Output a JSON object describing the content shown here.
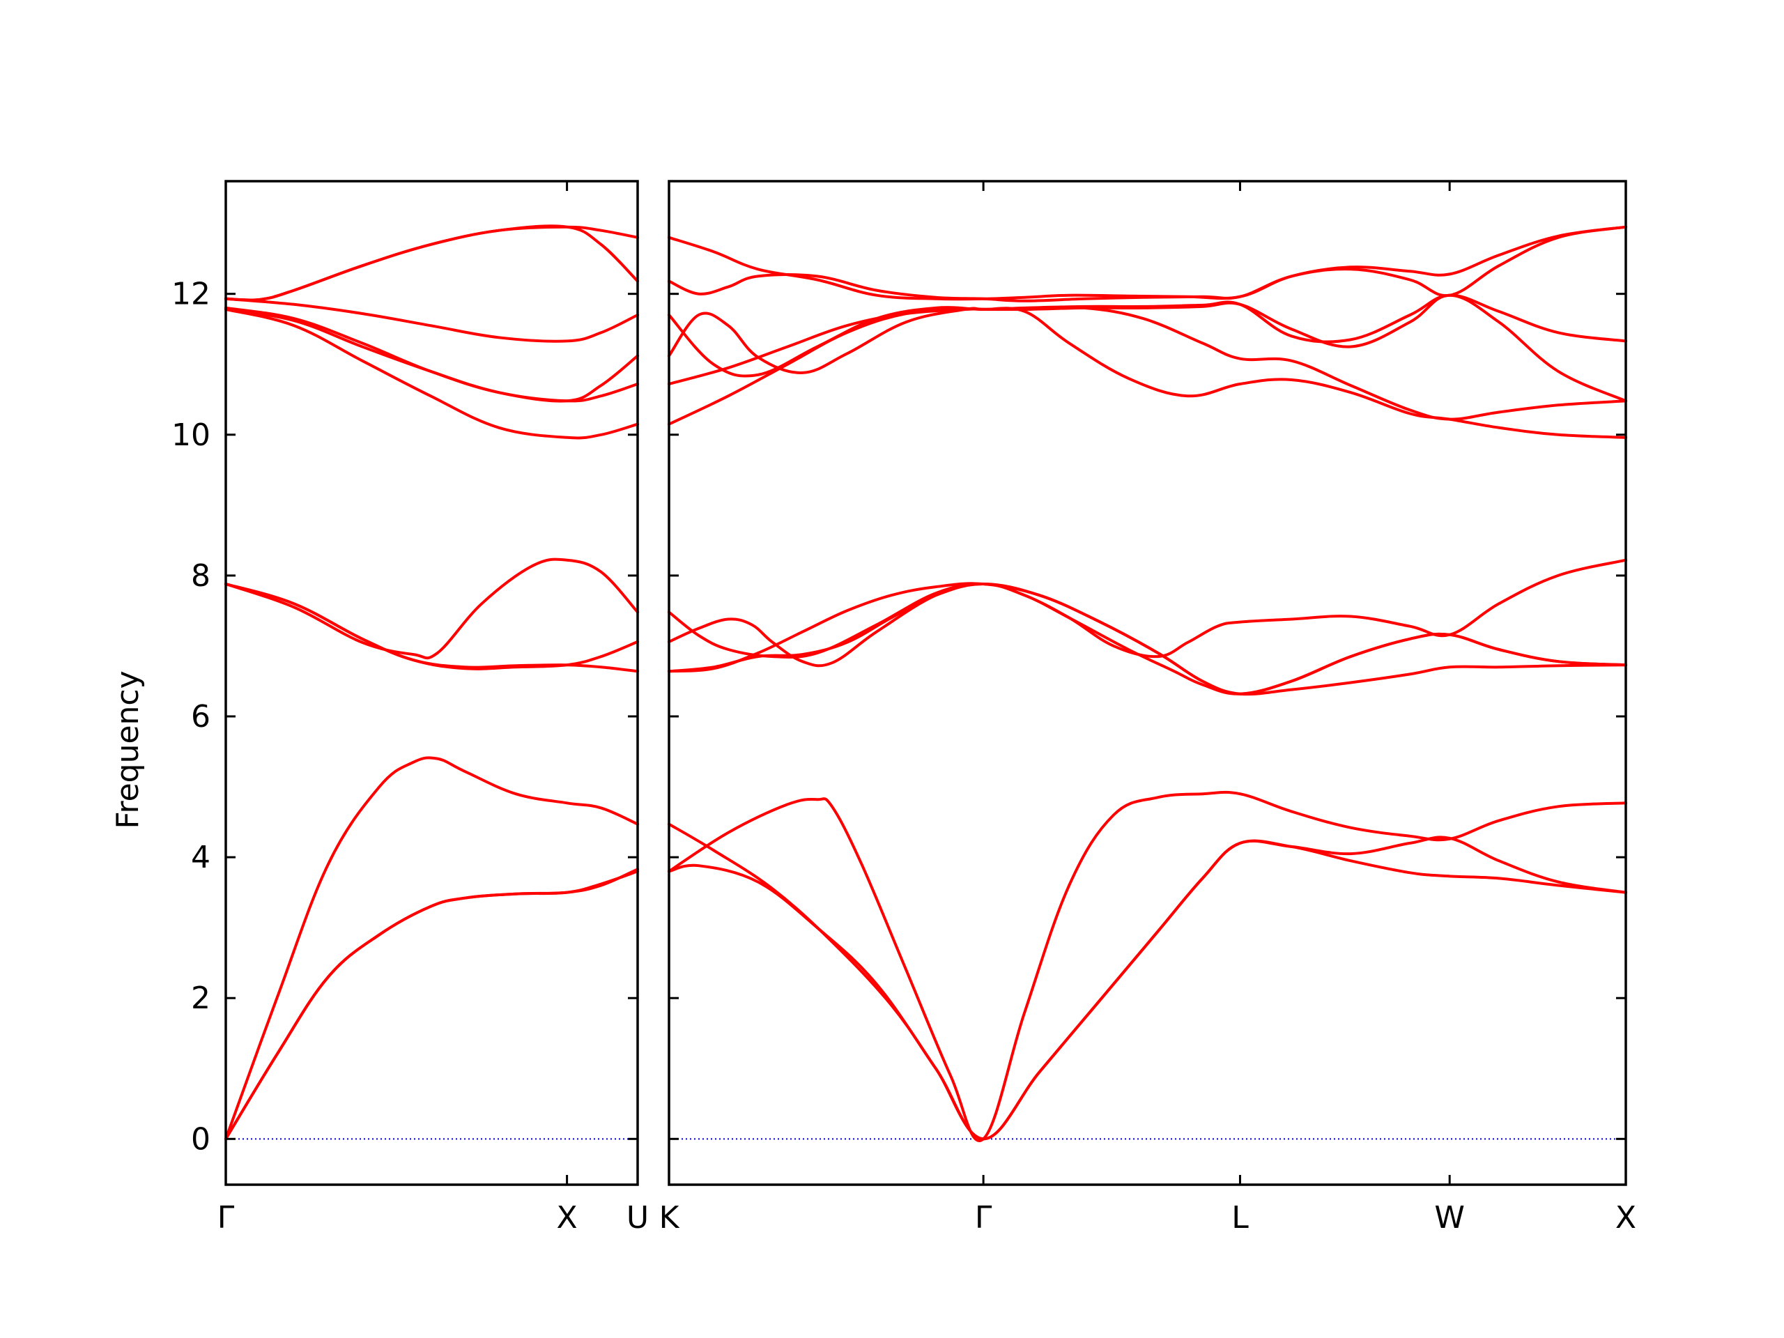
{
  "chart_data": {
    "type": "line",
    "ylabel": "Frequency",
    "ylim": [
      -0.65,
      13.6
    ],
    "yticks": [
      0,
      2,
      4,
      6,
      8,
      10,
      12
    ],
    "colors": {
      "bands": "#ff0000",
      "zero_line": "#0000cc",
      "frame": "#000000"
    },
    "grid": false,
    "panels": [
      {
        "x_range": [
          0,
          1.2071
        ],
        "ticks": [
          {
            "x": 0,
            "label": "Γ"
          },
          {
            "x": 1.0,
            "label": "X"
          },
          {
            "x": 1.2071,
            "label": "U"
          }
        ],
        "bands": [
          {
            "x": [
              0,
              0.15,
              0.3,
              0.45,
              0.6,
              0.7,
              0.85,
              1.0,
              1.1,
              1.2071
            ],
            "y": [
              0,
              1.2,
              2.3,
              2.9,
              3.3,
              3.42,
              3.48,
              3.5,
              3.62,
              3.8
            ]
          },
          {
            "x": [
              0,
              0.15,
              0.3,
              0.45,
              0.6,
              0.7,
              0.85,
              1.0,
              1.1,
              1.2071
            ],
            "y": [
              0,
              1.2,
              2.3,
              2.9,
              3.3,
              3.42,
              3.48,
              3.5,
              3.6,
              3.83
            ]
          },
          {
            "x": [
              0,
              0.15,
              0.3,
              0.45,
              0.55,
              0.62,
              0.7,
              0.85,
              1.0,
              1.1,
              1.2071
            ],
            "y": [
              0,
              2.0,
              3.9,
              5.0,
              5.35,
              5.4,
              5.22,
              4.9,
              4.77,
              4.7,
              4.47
            ]
          },
          {
            "x": [
              0,
              0.2,
              0.4,
              0.55,
              0.7,
              0.85,
              1.0,
              1.1,
              1.2071
            ],
            "y": [
              7.88,
              7.6,
              7.1,
              6.8,
              6.7,
              6.72,
              6.73,
              6.7,
              6.64
            ]
          },
          {
            "x": [
              0,
              0.2,
              0.4,
              0.55,
              0.7,
              0.85,
              1.0,
              1.1,
              1.2071
            ],
            "y": [
              7.88,
              7.6,
              7.1,
              6.8,
              6.68,
              6.7,
              6.73,
              6.85,
              7.06
            ]
          },
          {
            "x": [
              0,
              0.2,
              0.4,
              0.55,
              0.62,
              0.75,
              0.9,
              1.0,
              1.1,
              1.2071
            ],
            "y": [
              7.88,
              7.55,
              7.05,
              6.88,
              6.9,
              7.6,
              8.14,
              8.22,
              8.05,
              7.48
            ]
          },
          {
            "x": [
              0,
              0.2,
              0.4,
              0.6,
              0.8,
              1.0,
              1.1,
              1.2071
            ],
            "y": [
              11.78,
              11.55,
              11.05,
              10.55,
              10.1,
              9.96,
              10.0,
              10.15
            ]
          },
          {
            "x": [
              0,
              0.2,
              0.4,
              0.6,
              0.8,
              1.0,
              1.1,
              1.2071
            ],
            "y": [
              11.78,
              11.62,
              11.25,
              10.9,
              10.6,
              10.48,
              10.55,
              10.72
            ]
          },
          {
            "x": [
              0,
              0.2,
              0.4,
              0.6,
              0.8,
              1.0,
              1.1,
              1.2071
            ],
            "y": [
              11.8,
              11.65,
              11.3,
              10.9,
              10.6,
              10.48,
              10.7,
              11.12
            ]
          },
          {
            "x": [
              0,
              0.2,
              0.4,
              0.6,
              0.8,
              1.0,
              1.1,
              1.2071
            ],
            "y": [
              11.93,
              11.85,
              11.72,
              11.55,
              11.38,
              11.33,
              11.45,
              11.7
            ]
          },
          {
            "x": [
              0,
              0.1,
              0.2,
              0.4,
              0.6,
              0.8,
              1.0,
              1.1,
              1.2071
            ],
            "y": [
              11.93,
              11.92,
              12.05,
              12.4,
              12.7,
              12.9,
              12.95,
              12.9,
              12.8
            ]
          },
          {
            "x": [
              0,
              0.1,
              0.2,
              0.4,
              0.6,
              0.8,
              1.0,
              1.1,
              1.2071
            ],
            "y": [
              11.93,
              11.92,
              12.05,
              12.4,
              12.7,
              12.9,
              12.95,
              12.7,
              12.18
            ]
          }
        ]
      },
      {
        "x_range": [
          0,
          3.2282
        ],
        "ticks": [
          {
            "x": 0,
            "label": "K"
          },
          {
            "x": 1.0607,
            "label": "Γ"
          },
          {
            "x": 1.9267,
            "label": "L"
          },
          {
            "x": 2.6338,
            "label": "W"
          },
          {
            "x": 3.2282,
            "label": "X"
          }
        ],
        "bands": [
          {
            "x": [
              0,
              0.1,
              0.3,
              0.5,
              0.7,
              0.9,
              1.0607,
              1.25,
              1.45,
              1.65,
              1.8,
              1.9267,
              2.1,
              2.3,
              2.5,
              2.6338,
              2.8,
              3.0,
              3.2282
            ],
            "y": [
              3.8,
              3.88,
              3.65,
              3.0,
              2.2,
              1.0,
              0,
              0.95,
              1.95,
              2.95,
              3.7,
              4.2,
              4.15,
              3.95,
              3.78,
              3.73,
              3.7,
              3.6,
              3.5
            ]
          },
          {
            "x": [
              0,
              0.15,
              0.35,
              0.55,
              0.75,
              0.9,
              1.0607,
              1.25,
              1.45,
              1.65,
              1.8,
              1.9267,
              2.1,
              2.3,
              2.5,
              2.6338,
              2.8,
              3.0,
              3.2282
            ],
            "y": [
              4.47,
              4.1,
              3.55,
              2.8,
              1.9,
              1.0,
              0,
              0.95,
              1.95,
              2.95,
              3.7,
              4.2,
              4.15,
              4.05,
              4.2,
              4.27,
              3.95,
              3.65,
              3.5
            ]
          },
          {
            "x": [
              0,
              0.2,
              0.4,
              0.5,
              0.55,
              0.65,
              0.8,
              0.95,
              1.0607,
              1.2,
              1.35,
              1.5,
              1.65,
              1.8,
              1.9267,
              2.1,
              2.3,
              2.5,
              2.6338,
              2.8,
              3.0,
              3.2282
            ],
            "y": [
              3.8,
              4.35,
              4.75,
              4.82,
              4.72,
              3.9,
              2.4,
              0.9,
              0,
              1.8,
              3.6,
              4.6,
              4.85,
              4.9,
              4.9,
              4.65,
              4.42,
              4.3,
              4.26,
              4.52,
              4.72,
              4.77
            ]
          },
          {
            "x": [
              0,
              0.15,
              0.3,
              0.45,
              0.6,
              0.75,
              0.9,
              1.0607,
              1.25,
              1.45,
              1.65,
              1.8,
              1.9267,
              2.1,
              2.3,
              2.5,
              2.6338,
              2.8,
              3.0,
              3.2282
            ],
            "y": [
              6.64,
              6.68,
              6.9,
              7.2,
              7.5,
              7.72,
              7.84,
              7.88,
              7.72,
              7.35,
              6.9,
              6.5,
              6.32,
              6.38,
              6.48,
              6.6,
              6.7,
              6.7,
              6.72,
              6.73
            ]
          },
          {
            "x": [
              0,
              0.15,
              0.3,
              0.45,
              0.6,
              0.75,
              0.9,
              1.0607,
              1.25,
              1.45,
              1.65,
              1.8,
              1.9267,
              2.1,
              2.3,
              2.5,
              2.6338,
              2.8,
              3.0,
              3.2282
            ],
            "y": [
              6.64,
              6.7,
              6.85,
              6.88,
              7.05,
              7.4,
              7.72,
              7.88,
              7.72,
              7.35,
              6.9,
              6.5,
              6.32,
              6.5,
              6.85,
              7.1,
              7.16,
              6.95,
              6.78,
              6.73
            ]
          },
          {
            "x": [
              0,
              0.1,
              0.2,
              0.28,
              0.35,
              0.45,
              0.55,
              0.7,
              0.9,
              1.0607,
              1.2,
              1.35,
              1.5,
              1.65,
              1.75,
              1.85,
              1.9267,
              2.1,
              2.3,
              2.5,
              2.6338,
              2.8,
              3.0,
              3.2282
            ],
            "y": [
              7.06,
              7.25,
              7.38,
              7.3,
              7.05,
              6.78,
              6.76,
              7.2,
              7.72,
              7.88,
              7.72,
              7.4,
              7.0,
              6.85,
              7.05,
              7.28,
              7.34,
              7.38,
              7.42,
              7.28,
              7.16,
              7.6,
              8.0,
              8.22
            ]
          },
          {
            "x": [
              0,
              0.1,
              0.2,
              0.35,
              0.5,
              0.7,
              0.9,
              1.0607,
              1.2,
              1.35,
              1.55,
              1.7,
              1.8,
              1.9267,
              2.1,
              2.3,
              2.5,
              2.6338,
              2.8,
              3.0,
              3.2282
            ],
            "y": [
              7.48,
              7.15,
              6.95,
              6.85,
              6.9,
              7.3,
              7.75,
              7.88,
              7.72,
              7.4,
              6.95,
              6.65,
              6.45,
              6.32,
              6.5,
              6.85,
              7.1,
              7.16,
              6.95,
              6.78,
              6.73
            ]
          },
          {
            "x": [
              0,
              0.2,
              0.4,
              0.6,
              0.8,
              1.0,
              1.0607,
              1.2,
              1.35,
              1.55,
              1.75,
              1.9267,
              2.1,
              2.3,
              2.5,
              2.6338,
              2.8,
              3.0,
              3.2282
            ],
            "y": [
              10.15,
              10.55,
              11.0,
              11.45,
              11.72,
              11.78,
              11.78,
              11.75,
              11.3,
              10.8,
              10.55,
              10.72,
              10.78,
              10.6,
              10.3,
              10.22,
              10.1,
              10.0,
              9.96
            ]
          },
          {
            "x": [
              0,
              0.2,
              0.4,
              0.6,
              0.8,
              1.0,
              1.0607,
              1.2,
              1.4,
              1.6,
              1.8,
              1.9267,
              2.1,
              2.3,
              2.5,
              2.6338,
              2.8,
              3.0,
              3.2282
            ],
            "y": [
              10.72,
              10.95,
              11.25,
              11.55,
              11.72,
              11.78,
              11.78,
              11.78,
              11.8,
              11.65,
              11.3,
              11.08,
              11.05,
              10.7,
              10.35,
              10.22,
              10.32,
              10.42,
              10.48
            ]
          },
          {
            "x": [
              0,
              0.1,
              0.2,
              0.3,
              0.45,
              0.6,
              0.8,
              1.0,
              1.0607,
              1.2,
              1.4,
              1.6,
              1.8,
              1.9267,
              2.1,
              2.3,
              2.5,
              2.6338,
              2.8,
              3.0,
              3.2282
            ],
            "y": [
              11.12,
              11.7,
              11.55,
              11.1,
              10.88,
              11.15,
              11.6,
              11.78,
              11.78,
              11.78,
              11.8,
              11.8,
              11.82,
              11.85,
              11.5,
              11.25,
              11.6,
              11.98,
              11.6,
              10.9,
              10.48
            ]
          },
          {
            "x": [
              0,
              0.15,
              0.3,
              0.5,
              0.7,
              0.9,
              1.0607,
              1.2,
              1.4,
              1.6,
              1.8,
              1.9267,
              2.1,
              2.3,
              2.5,
              2.6338,
              2.8,
              3.0,
              3.2282
            ],
            "y": [
              11.7,
              11.0,
              10.85,
              11.25,
              11.65,
              11.8,
              11.78,
              11.8,
              11.82,
              11.82,
              11.84,
              11.85,
              11.4,
              11.35,
              11.7,
              11.98,
              11.75,
              11.45,
              11.33
            ]
          },
          {
            "x": [
              0,
              0.1,
              0.2,
              0.3,
              0.5,
              0.7,
              0.9,
              1.0607,
              1.2,
              1.4,
              1.6,
              1.8,
              1.9267,
              2.1,
              2.3,
              2.5,
              2.6338,
              2.8,
              3.0,
              3.2282
            ],
            "y": [
              12.18,
              12.0,
              12.1,
              12.25,
              12.25,
              12.05,
              11.95,
              11.93,
              11.9,
              11.93,
              11.95,
              11.96,
              11.96,
              12.25,
              12.35,
              12.2,
              11.98,
              12.4,
              12.8,
              12.95
            ]
          },
          {
            "x": [
              0,
              0.15,
              0.3,
              0.5,
              0.7,
              0.9,
              1.0607,
              1.2,
              1.35,
              1.55,
              1.75,
              1.9267,
              2.1,
              2.3,
              2.5,
              2.6338,
              2.8,
              3.0,
              3.2282
            ],
            "y": [
              12.8,
              12.6,
              12.35,
              12.2,
              11.98,
              11.93,
              11.93,
              11.95,
              11.98,
              11.97,
              11.96,
              11.96,
              12.25,
              12.38,
              12.32,
              12.28,
              12.55,
              12.82,
              12.95
            ]
          }
        ]
      }
    ]
  }
}
